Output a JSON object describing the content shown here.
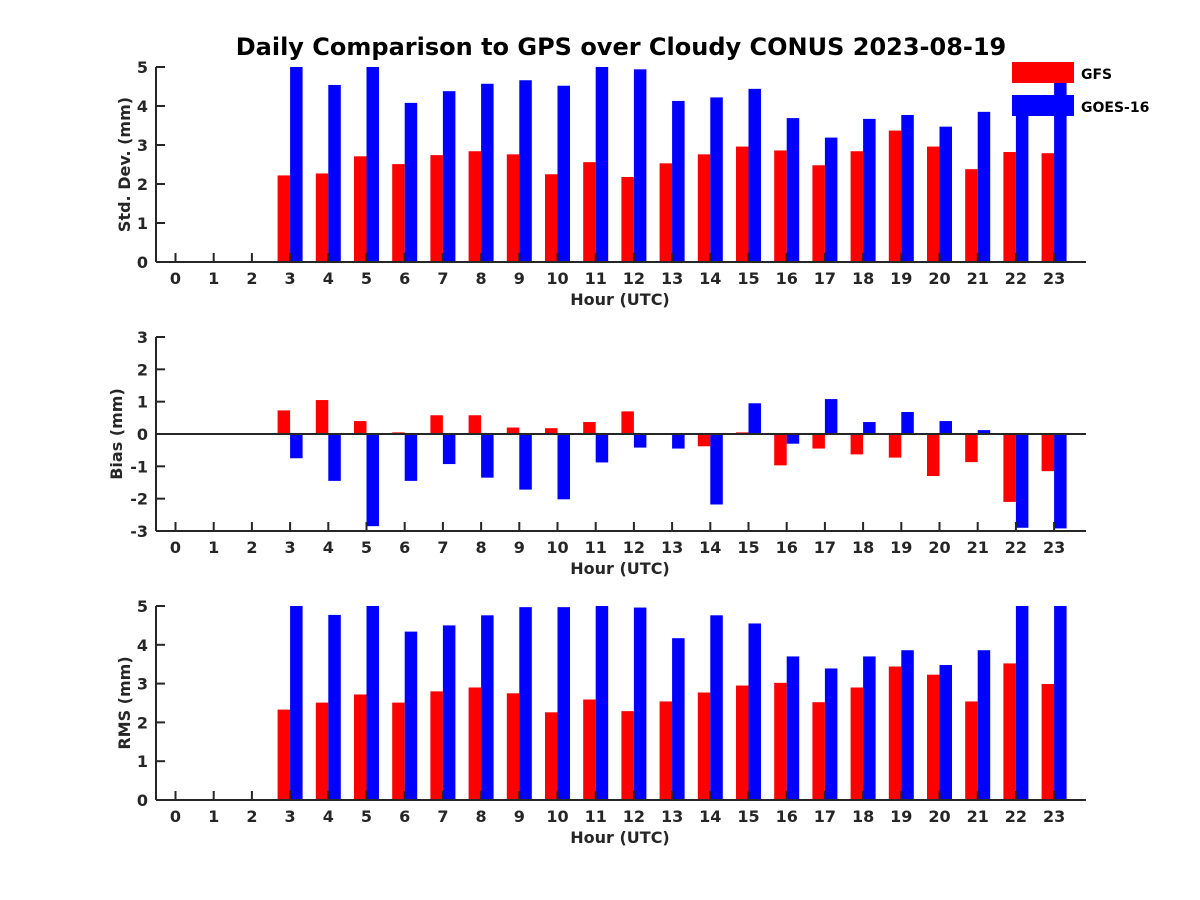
{
  "title": "Daily Comparison to GPS over Cloudy CONUS 2023-08-19",
  "legend": {
    "placement": "top-right",
    "items": [
      {
        "label": "GFS",
        "color": "#ff0000"
      },
      {
        "label": "GOES-16",
        "color": "#0000ff"
      }
    ]
  },
  "chart_data": [
    {
      "type": "bar",
      "ylabel": "Std. Dev. (mm)",
      "xlabel": "Hour (UTC)",
      "ylim": [
        0,
        5
      ],
      "yticks": [
        0,
        1,
        2,
        3,
        4,
        5
      ],
      "categories": [
        "0",
        "1",
        "2",
        "3",
        "4",
        "5",
        "6",
        "7",
        "8",
        "9",
        "10",
        "11",
        "12",
        "13",
        "14",
        "15",
        "16",
        "17",
        "18",
        "19",
        "20",
        "21",
        "22",
        "23"
      ],
      "series": [
        {
          "name": "GFS",
          "color": "#ff0000",
          "values": [
            null,
            null,
            null,
            2.22,
            2.27,
            2.71,
            2.51,
            2.74,
            2.84,
            2.76,
            2.25,
            2.56,
            2.18,
            2.53,
            2.76,
            2.96,
            2.86,
            2.48,
            2.84,
            3.37,
            2.96,
            2.38,
            2.82,
            2.79
          ]
        },
        {
          "name": "GOES-16",
          "color": "#0000ff",
          "values": [
            null,
            null,
            null,
            5.0,
            4.54,
            5.0,
            4.08,
            4.38,
            4.57,
            4.66,
            4.52,
            5.0,
            4.94,
            4.13,
            4.22,
            4.44,
            3.69,
            3.19,
            3.67,
            3.77,
            3.47,
            3.85,
            4.15,
            4.65
          ]
        }
      ]
    },
    {
      "type": "bar",
      "ylabel": "Bias (mm)",
      "xlabel": "Hour (UTC)",
      "ylim": [
        -3,
        3
      ],
      "yticks": [
        -3,
        -2,
        -1,
        0,
        1,
        2,
        3
      ],
      "categories": [
        "0",
        "1",
        "2",
        "3",
        "4",
        "5",
        "6",
        "7",
        "8",
        "9",
        "10",
        "11",
        "12",
        "13",
        "14",
        "15",
        "16",
        "17",
        "18",
        "19",
        "20",
        "21",
        "22",
        "23"
      ],
      "series": [
        {
          "name": "GFS",
          "color": "#ff0000",
          "values": [
            null,
            null,
            null,
            0.73,
            1.05,
            0.4,
            0.05,
            0.58,
            0.58,
            0.2,
            0.18,
            0.37,
            0.7,
            0.02,
            -0.38,
            0.05,
            -0.97,
            -0.45,
            -0.63,
            -0.73,
            -1.3,
            -0.87,
            -2.1,
            -1.15
          ]
        },
        {
          "name": "GOES-16",
          "color": "#0000ff",
          "values": [
            null,
            null,
            null,
            -0.75,
            -1.45,
            -2.85,
            -1.45,
            -0.93,
            -1.35,
            -1.72,
            -2.02,
            -0.88,
            -0.42,
            -0.45,
            -2.18,
            0.95,
            -0.3,
            1.08,
            0.37,
            0.68,
            0.4,
            0.12,
            -2.9,
            -2.92
          ]
        }
      ]
    },
    {
      "type": "bar",
      "ylabel": "RMS (mm)",
      "xlabel": "Hour (UTC)",
      "ylim": [
        0,
        5
      ],
      "yticks": [
        0,
        1,
        2,
        3,
        4,
        5
      ],
      "categories": [
        "0",
        "1",
        "2",
        "3",
        "4",
        "5",
        "6",
        "7",
        "8",
        "9",
        "10",
        "11",
        "12",
        "13",
        "14",
        "15",
        "16",
        "17",
        "18",
        "19",
        "20",
        "21",
        "22",
        "23"
      ],
      "series": [
        {
          "name": "GFS",
          "color": "#ff0000",
          "values": [
            null,
            null,
            null,
            2.33,
            2.51,
            2.72,
            2.51,
            2.8,
            2.9,
            2.75,
            2.26,
            2.59,
            2.29,
            2.54,
            2.77,
            2.95,
            3.02,
            2.52,
            2.9,
            3.44,
            3.23,
            2.54,
            3.52,
            2.99
          ]
        },
        {
          "name": "GOES-16",
          "color": "#0000ff",
          "values": [
            null,
            null,
            null,
            5.0,
            4.77,
            5.0,
            4.34,
            4.5,
            4.76,
            4.97,
            4.97,
            5.0,
            4.96,
            4.17,
            4.76,
            4.55,
            3.7,
            3.39,
            3.7,
            3.86,
            3.48,
            3.86,
            5.0,
            5.0
          ]
        }
      ]
    }
  ]
}
